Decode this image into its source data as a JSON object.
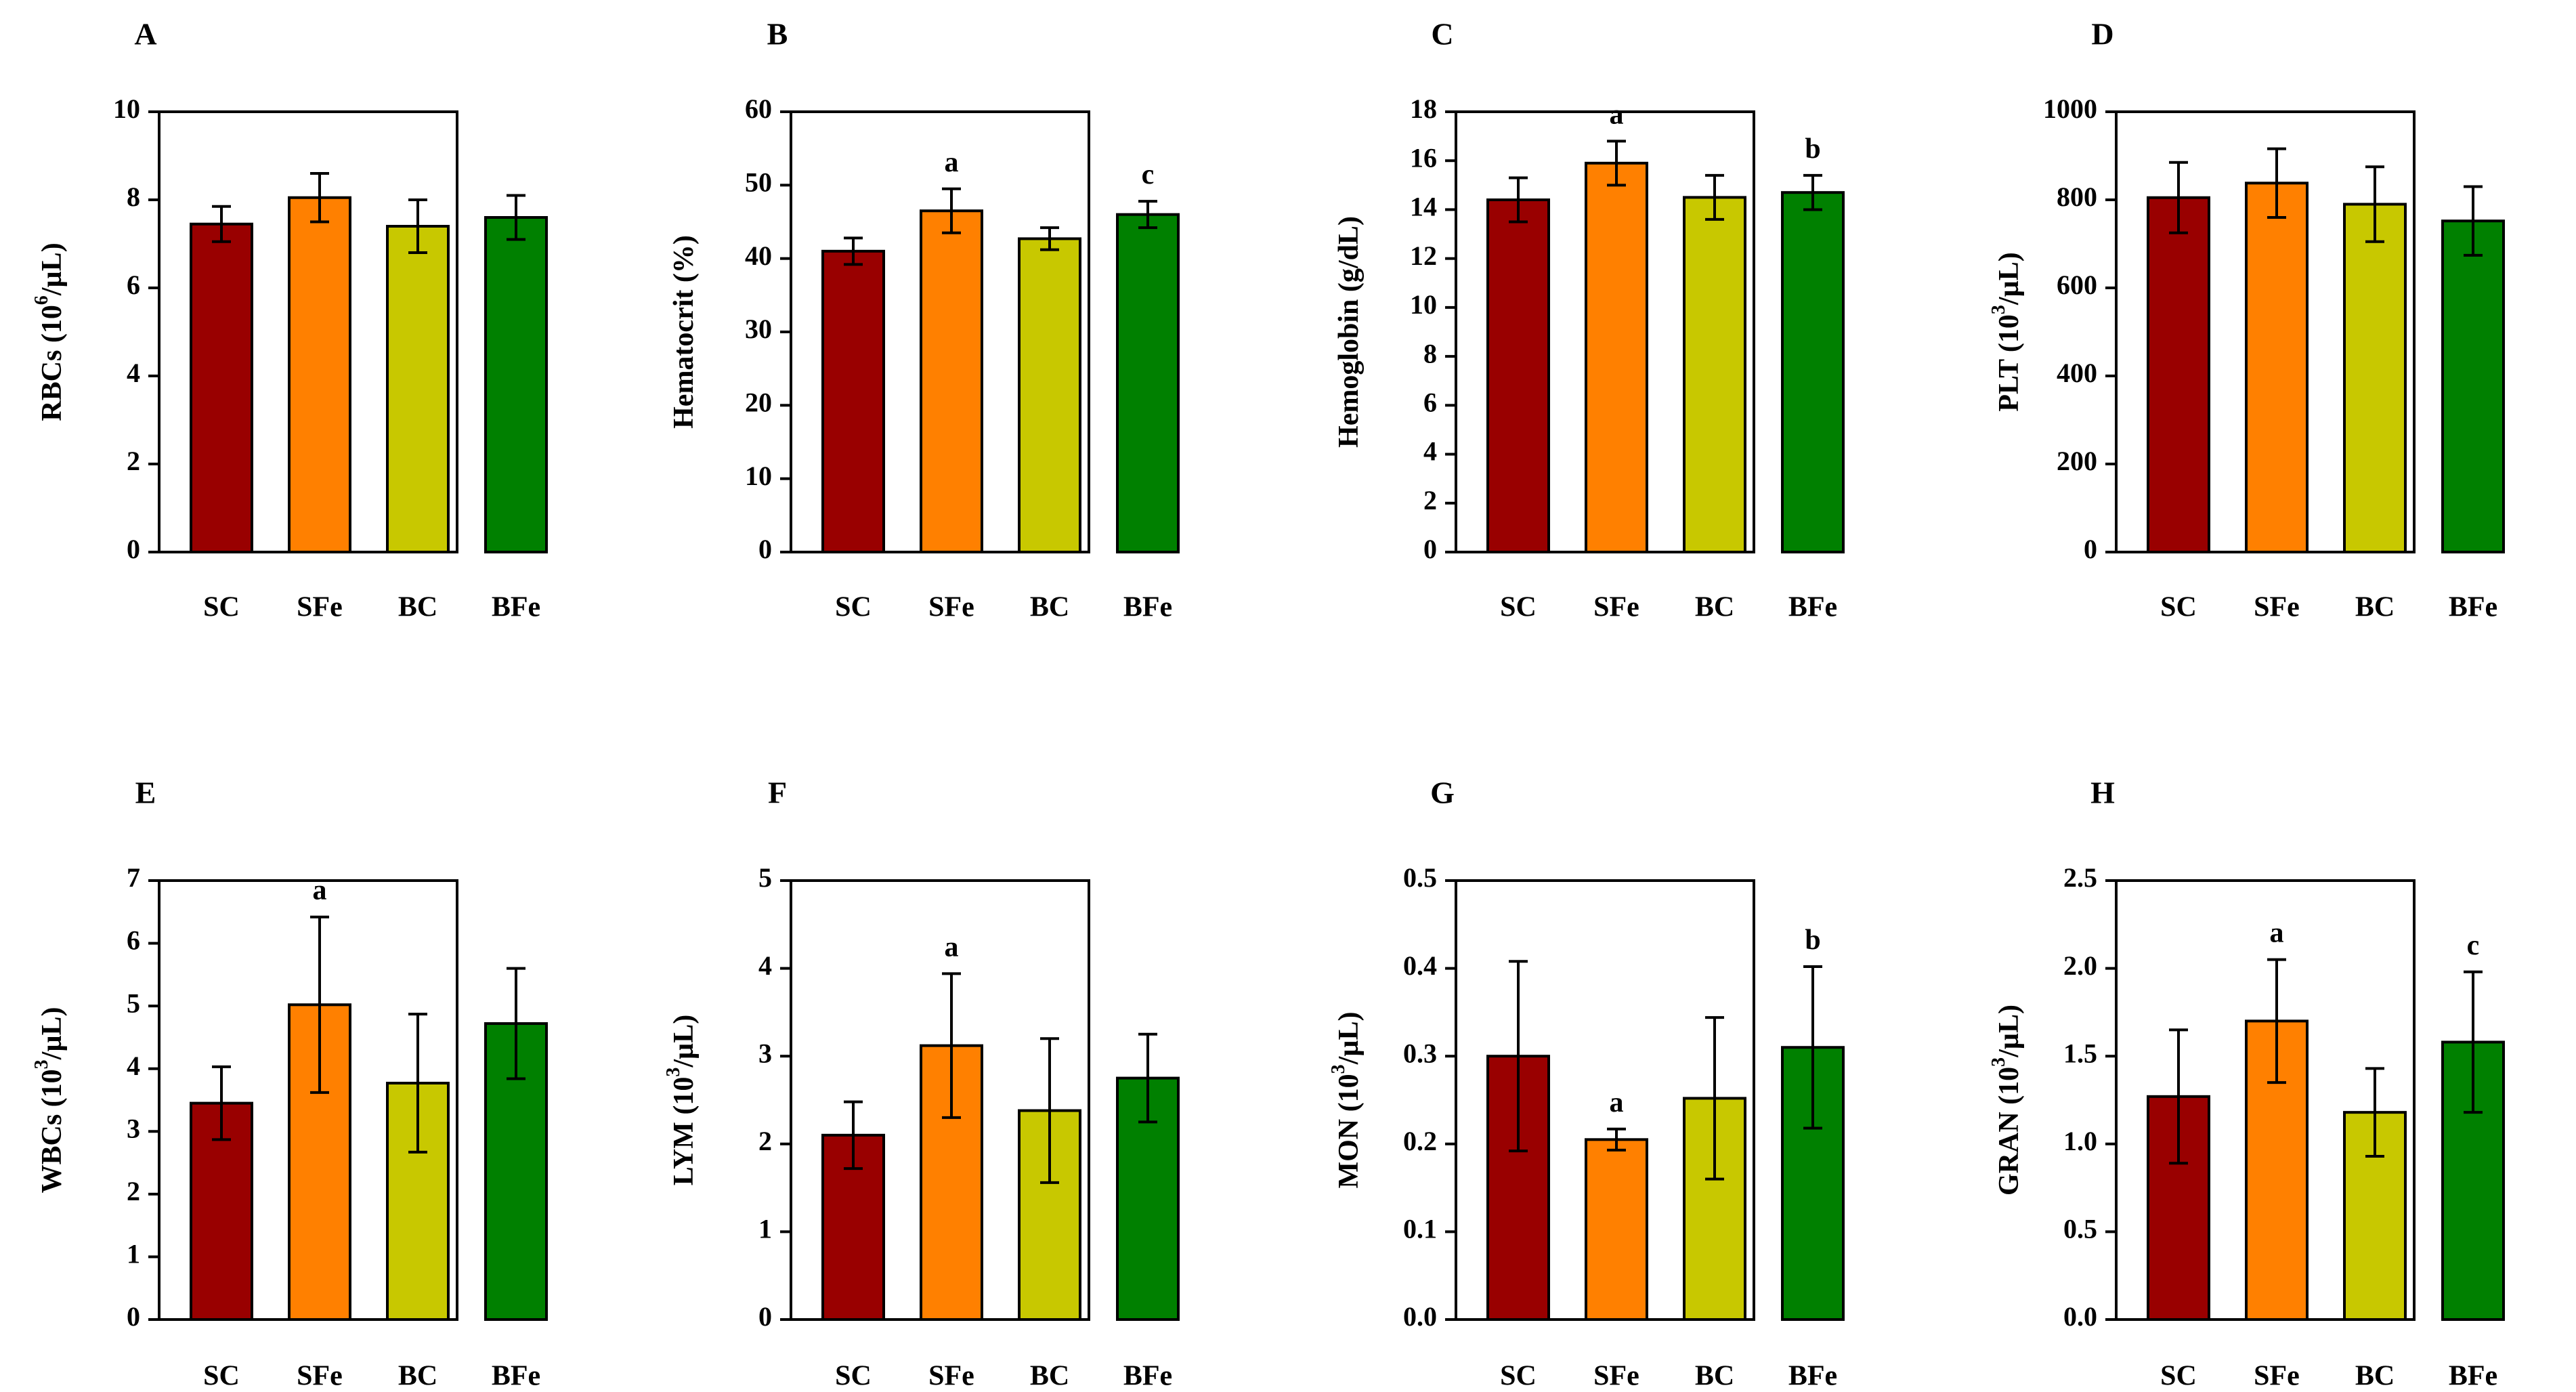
{
  "colors": {
    "SC": "#990000",
    "SFe": "#ff8000",
    "BC": "#c8c800",
    "BFe": "#008000"
  },
  "chart_data": [
    {
      "panel": "A",
      "type": "bar",
      "ylabel_main": "RBCs (10",
      "ylabel_sup": "6",
      "ylabel_tail": "/µL)",
      "categories": [
        "SC",
        "SFe",
        "BC",
        "BFe"
      ],
      "values": [
        7.45,
        8.05,
        7.4,
        7.6
      ],
      "errors": [
        0.4,
        0.55,
        0.6,
        0.5
      ],
      "sig": [
        "",
        "",
        "",
        ""
      ],
      "ylim": [
        0,
        10
      ],
      "ticks": [
        "0",
        "2",
        "4",
        "6",
        "8",
        "10"
      ]
    },
    {
      "panel": "B",
      "type": "bar",
      "ylabel_main": "Hematocrit (%)",
      "ylabel_sup": "",
      "ylabel_tail": "",
      "categories": [
        "SC",
        "SFe",
        "BC",
        "BFe"
      ],
      "values": [
        41,
        46.5,
        42.7,
        46
      ],
      "errors": [
        1.8,
        3,
        1.5,
        1.8
      ],
      "sig": [
        "",
        "a",
        "",
        "c"
      ],
      "ylim": [
        0,
        60
      ],
      "ticks": [
        "0",
        "10",
        "20",
        "30",
        "40",
        "50",
        "60"
      ]
    },
    {
      "panel": "C",
      "type": "bar",
      "ylabel_main": "Hemoglobin (g/dL)",
      "ylabel_sup": "",
      "ylabel_tail": "",
      "categories": [
        "SC",
        "SFe",
        "BC",
        "BFe"
      ],
      "values": [
        14.4,
        15.9,
        14.5,
        14.7
      ],
      "errors": [
        0.9,
        0.9,
        0.9,
        0.7
      ],
      "sig": [
        "",
        "a",
        "",
        "b"
      ],
      "ylim": [
        0,
        18
      ],
      "ticks": [
        "0",
        "2",
        "4",
        "6",
        "8",
        "10",
        "12",
        "14",
        "16",
        "18"
      ]
    },
    {
      "panel": "D",
      "type": "bar",
      "ylabel_main": "PLT (10",
      "ylabel_sup": "3",
      "ylabel_tail": "/µL)",
      "categories": [
        "SC",
        "SFe",
        "BC",
        "BFe"
      ],
      "values": [
        805,
        838,
        790,
        752
      ],
      "errors": [
        80,
        78,
        85,
        78
      ],
      "sig": [
        "",
        "",
        "",
        ""
      ],
      "ylim": [
        0,
        1000
      ],
      "ticks": [
        "0",
        "200",
        "400",
        "600",
        "800",
        "1000"
      ]
    },
    {
      "panel": "E",
      "type": "bar",
      "ylabel_main": "WBCs (10",
      "ylabel_sup": "3",
      "ylabel_tail": "/µL)",
      "categories": [
        "SC",
        "SFe",
        "BC",
        "BFe"
      ],
      "values": [
        3.45,
        5.02,
        3.77,
        4.72
      ],
      "errors": [
        0.58,
        1.4,
        1.1,
        0.88
      ],
      "sig": [
        "",
        "a",
        "",
        ""
      ],
      "ylim": [
        0,
        7
      ],
      "ticks": [
        "0",
        "1",
        "2",
        "3",
        "4",
        "5",
        "6",
        "7"
      ]
    },
    {
      "panel": "F",
      "type": "bar",
      "ylabel_main": "LYM (10",
      "ylabel_sup": "3",
      "ylabel_tail": "/µL)",
      "categories": [
        "SC",
        "SFe",
        "BC",
        "BFe"
      ],
      "values": [
        2.1,
        3.12,
        2.38,
        2.75
      ],
      "errors": [
        0.38,
        0.82,
        0.82,
        0.5
      ],
      "sig": [
        "",
        "a",
        "",
        ""
      ],
      "ylim": [
        0,
        5
      ],
      "ticks": [
        "0",
        "1",
        "2",
        "3",
        "4",
        "5"
      ]
    },
    {
      "panel": "G",
      "type": "bar",
      "ylabel_main": "MON (10",
      "ylabel_sup": "3",
      "ylabel_tail": "/µL)",
      "categories": [
        "SC",
        "SFe",
        "BC",
        "BFe"
      ],
      "values": [
        0.3,
        0.205,
        0.252,
        0.31
      ],
      "errors": [
        0.108,
        0.012,
        0.092,
        0.092
      ],
      "sig": [
        "",
        "a",
        "",
        "b"
      ],
      "ylim": [
        0,
        0.5
      ],
      "ticks": [
        "0.0",
        "0.1",
        "0.2",
        "0.3",
        "0.4",
        "0.5"
      ]
    },
    {
      "panel": "H",
      "type": "bar",
      "ylabel_main": "GRAN (10",
      "ylabel_sup": "3",
      "ylabel_tail": "/µL)",
      "categories": [
        "SC",
        "SFe",
        "BC",
        "BFe"
      ],
      "values": [
        1.27,
        1.7,
        1.18,
        1.58
      ],
      "errors": [
        0.38,
        0.35,
        0.25,
        0.4
      ],
      "sig": [
        "",
        "a",
        "",
        "c"
      ],
      "ylim": [
        0,
        2.5
      ],
      "ticks": [
        "0.0",
        "0.5",
        "1.0",
        "1.5",
        "2.0",
        "2.5"
      ]
    }
  ]
}
